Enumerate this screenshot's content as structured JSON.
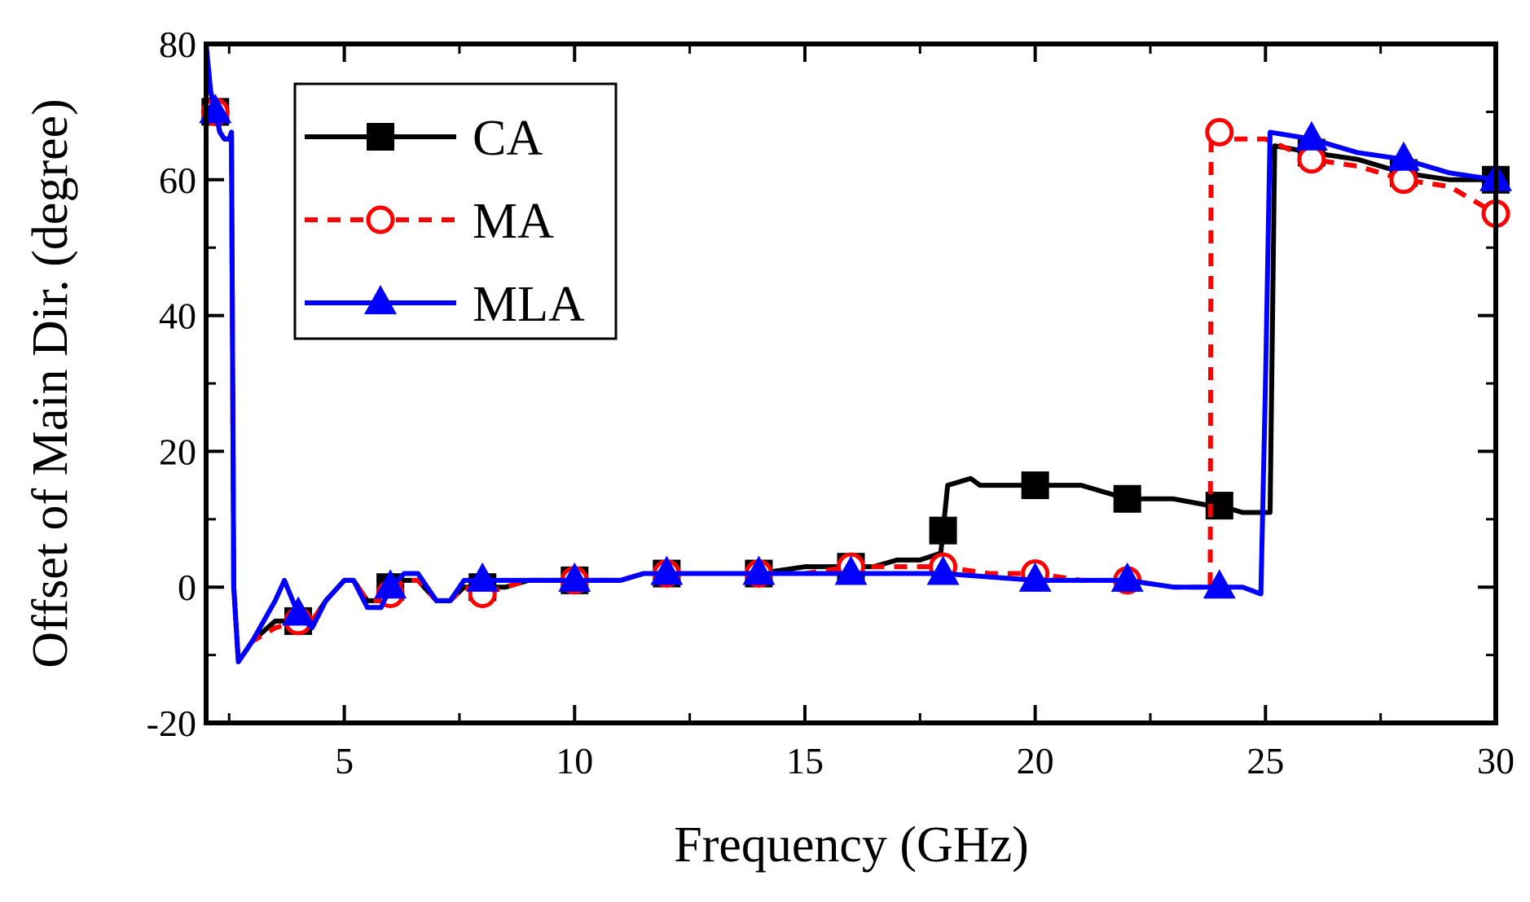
{
  "chart_data": {
    "type": "line",
    "title": "",
    "xlabel": "Frequency (GHz)",
    "ylabel": "Offset of Main Dir. (degree)",
    "xlim": [
      2,
      30
    ],
    "ylim": [
      -20,
      80
    ],
    "x_ticks": [
      5,
      10,
      15,
      20,
      25,
      30
    ],
    "x_tick_labels": [
      "5",
      "10",
      "15",
      "20",
      "25",
      "30"
    ],
    "y_ticks": [
      -20,
      0,
      20,
      40,
      60,
      80
    ],
    "y_tick_labels": [
      "-20",
      "0",
      "20",
      "40",
      "60",
      "80"
    ],
    "legend_position": "top-left",
    "series": [
      {
        "name": "CA",
        "color": "#000000",
        "dash": "solid",
        "marker": "square-filled",
        "x": [
          2.0,
          2.1,
          2.3,
          2.4,
          2.5,
          2.55,
          2.6,
          2.7,
          3.0,
          3.5,
          4.0,
          4.3,
          4.6,
          5.0,
          5.2,
          5.5,
          5.8,
          6.0,
          6.3,
          6.6,
          7.0,
          7.3,
          7.6,
          8.0,
          8.5,
          9.0,
          9.5,
          10.0,
          11.0,
          11.5,
          12.0,
          13.0,
          14.0,
          15.0,
          16.0,
          16.5,
          17.0,
          17.5,
          17.95,
          18.1,
          18.6,
          18.8,
          20.0,
          21.0,
          22.0,
          23.0,
          23.8,
          24.0,
          24.5,
          25.1,
          25.2,
          26.0,
          27.0,
          28.0,
          29.0,
          30.0
        ],
        "y": [
          78,
          73,
          67,
          66,
          66,
          67,
          0,
          -11,
          -8,
          -5,
          -5,
          -5,
          -2,
          1,
          1,
          -2,
          -2,
          0,
          1,
          1,
          -2,
          -2,
          0,
          0,
          0,
          1,
          1,
          1,
          1,
          2,
          2,
          2,
          2,
          3,
          3,
          3,
          4,
          4,
          5,
          15,
          16,
          15,
          15,
          15,
          13,
          13,
          12,
          12,
          11,
          11,
          65,
          64,
          63,
          61,
          60,
          60
        ]
      },
      {
        "name": "MA",
        "color": "#ff0000",
        "dash": "dashed",
        "marker": "circle-open",
        "x": [
          2.0,
          2.1,
          2.3,
          2.4,
          2.5,
          2.55,
          2.6,
          2.7,
          3.0,
          3.5,
          4.0,
          4.3,
          4.6,
          5.0,
          5.2,
          5.5,
          5.8,
          6.0,
          6.3,
          6.6,
          7.0,
          7.3,
          7.6,
          8.0,
          8.5,
          9.0,
          10.0,
          11.0,
          11.5,
          12.0,
          14.0,
          15.0,
          16.0,
          17.0,
          18.0,
          19.0,
          20.0,
          21.0,
          22.0,
          23.0,
          23.8,
          23.82,
          24.0,
          25.0,
          26.0,
          27.0,
          28.0,
          29.0,
          30.0
        ],
        "y": [
          80,
          73,
          67,
          66,
          66,
          67,
          0,
          -11,
          -8,
          -6,
          -5,
          -5,
          -2,
          1,
          1,
          -2,
          -2,
          -1,
          1,
          1,
          -2,
          -2,
          0,
          -1,
          0,
          1,
          1,
          1,
          2,
          2,
          2,
          2,
          3,
          3,
          3,
          2,
          2,
          1,
          1,
          0,
          0,
          67,
          66,
          66,
          63,
          62,
          60,
          59,
          55
        ]
      },
      {
        "name": "MLA",
        "color": "#0000ff",
        "dash": "solid",
        "marker": "triangle-filled",
        "x": [
          2.0,
          2.1,
          2.3,
          2.4,
          2.5,
          2.55,
          2.6,
          2.7,
          3.0,
          3.5,
          3.7,
          4.0,
          4.3,
          4.6,
          5.0,
          5.2,
          5.5,
          5.8,
          6.0,
          6.3,
          6.6,
          7.0,
          7.3,
          7.6,
          8.0,
          8.5,
          9.0,
          10.0,
          11.0,
          11.5,
          12.0,
          14.0,
          16.0,
          18.0,
          20.0,
          22.0,
          23.0,
          24.0,
          24.5,
          24.9,
          25.0,
          25.1,
          26.0,
          27.0,
          28.0,
          29.0,
          30.0
        ],
        "y": [
          80,
          73,
          67,
          66,
          66,
          67,
          0,
          -11,
          -8,
          -2,
          1,
          -4,
          -6,
          -2,
          1,
          1,
          -3,
          -3,
          0,
          2,
          2,
          -2,
          -2,
          1,
          1,
          1,
          1,
          1,
          1,
          2,
          2,
          2,
          2,
          2,
          1,
          1,
          0,
          0,
          0,
          -1,
          30,
          67,
          66,
          64,
          63,
          61,
          60
        ]
      }
    ]
  }
}
